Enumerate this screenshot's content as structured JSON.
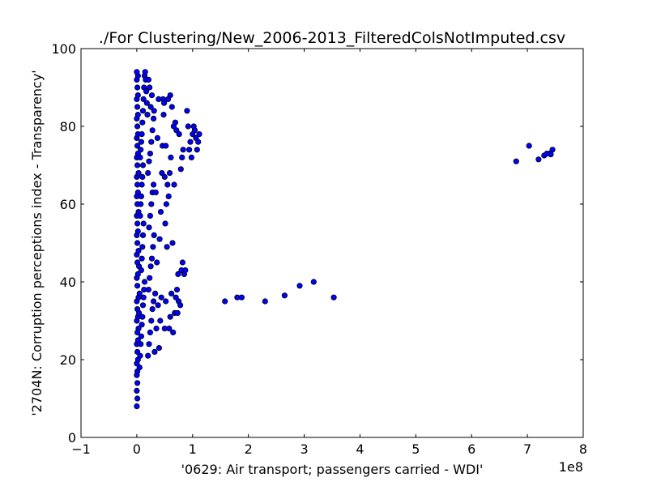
{
  "chart_data": {
    "type": "scatter",
    "title": "./For Clustering/New_2006-2013_FilteredColsNotImputed.csv",
    "xlabel": "'0629: Air transport; passengers carried - WDI'",
    "ylabel": "'2704N: Corruption perceptions index - Transparency'",
    "x_offset_label": "1e8",
    "xlim": [
      -1,
      8
    ],
    "ylim": [
      0,
      100
    ],
    "x_scale_factor": 100000000,
    "xticks": [
      -1,
      0,
      1,
      2,
      3,
      4,
      5,
      6,
      7,
      8
    ],
    "xtick_labels": [
      "−1",
      "0",
      "1",
      "2",
      "3",
      "4",
      "5",
      "6",
      "7",
      "8"
    ],
    "yticks": [
      0,
      20,
      40,
      60,
      80,
      100
    ],
    "ytick_labels": [
      "0",
      "20",
      "40",
      "60",
      "80",
      "100"
    ],
    "grid": false,
    "marker_color": "#0000ff",
    "marker_edge": "#000000",
    "points_xy": [
      [
        0.0,
        8
      ],
      [
        0.01,
        10
      ],
      [
        0.0,
        12
      ],
      [
        0.01,
        14
      ],
      [
        0.0,
        16
      ],
      [
        0.01,
        17
      ],
      [
        0.0,
        19
      ],
      [
        0.02,
        20
      ],
      [
        0.01,
        22
      ],
      [
        0.0,
        24
      ],
      [
        0.02,
        25
      ],
      [
        0.01,
        27
      ],
      [
        0.03,
        28
      ],
      [
        0.0,
        30
      ],
      [
        0.02,
        31
      ],
      [
        0.04,
        32
      ],
      [
        0.01,
        33
      ],
      [
        0.0,
        35
      ],
      [
        0.03,
        36
      ],
      [
        0.05,
        37
      ],
      [
        0.01,
        39
      ],
      [
        0.0,
        41
      ],
      [
        0.02,
        42
      ],
      [
        0.04,
        44
      ],
      [
        0.01,
        45
      ],
      [
        0.0,
        47
      ],
      [
        0.03,
        48
      ],
      [
        0.01,
        50
      ],
      [
        0.0,
        52
      ],
      [
        0.02,
        53
      ],
      [
        0.01,
        55
      ],
      [
        0.0,
        57
      ],
      [
        0.03,
        58
      ],
      [
        0.01,
        60
      ],
      [
        0.0,
        62
      ],
      [
        0.02,
        63
      ],
      [
        0.01,
        65
      ],
      [
        0.0,
        67
      ],
      [
        0.03,
        68
      ],
      [
        0.01,
        70
      ],
      [
        0.0,
        72
      ],
      [
        0.02,
        73
      ],
      [
        0.01,
        75
      ],
      [
        0.0,
        77
      ],
      [
        0.02,
        78
      ],
      [
        0.01,
        80
      ],
      [
        0.0,
        82
      ],
      [
        0.02,
        83
      ],
      [
        0.01,
        85
      ],
      [
        0.0,
        87
      ],
      [
        0.02,
        88
      ],
      [
        0.01,
        90
      ],
      [
        0.0,
        92
      ],
      [
        0.02,
        93
      ],
      [
        0.0,
        94
      ],
      [
        0.05,
        18
      ],
      [
        0.06,
        21
      ],
      [
        0.07,
        24
      ],
      [
        0.08,
        26
      ],
      [
        0.09,
        29
      ],
      [
        0.1,
        31
      ],
      [
        0.11,
        34
      ],
      [
        0.12,
        36
      ],
      [
        0.13,
        38
      ],
      [
        0.14,
        40
      ],
      [
        0.08,
        43
      ],
      [
        0.09,
        46
      ],
      [
        0.1,
        49
      ],
      [
        0.11,
        52
      ],
      [
        0.12,
        55
      ],
      [
        0.06,
        57
      ],
      [
        0.07,
        60
      ],
      [
        0.08,
        62
      ],
      [
        0.09,
        65
      ],
      [
        0.1,
        67
      ],
      [
        0.11,
        70
      ],
      [
        0.06,
        72
      ],
      [
        0.07,
        74
      ],
      [
        0.08,
        76
      ],
      [
        0.09,
        78
      ],
      [
        0.1,
        81
      ],
      [
        0.11,
        84
      ],
      [
        0.12,
        87
      ],
      [
        0.13,
        90
      ],
      [
        0.14,
        93
      ],
      [
        0.15,
        94
      ],
      [
        0.16,
        92
      ],
      [
        0.17,
        89
      ],
      [
        0.18,
        86
      ],
      [
        0.19,
        83
      ],
      [
        0.2,
        21
      ],
      [
        0.22,
        24
      ],
      [
        0.24,
        27
      ],
      [
        0.26,
        30
      ],
      [
        0.28,
        33
      ],
      [
        0.3,
        35
      ],
      [
        0.21,
        38
      ],
      [
        0.23,
        41
      ],
      [
        0.25,
        44
      ],
      [
        0.27,
        46
      ],
      [
        0.29,
        49
      ],
      [
        0.31,
        52
      ],
      [
        0.22,
        54
      ],
      [
        0.24,
        57
      ],
      [
        0.26,
        60
      ],
      [
        0.28,
        63
      ],
      [
        0.3,
        65
      ],
      [
        0.2,
        68
      ],
      [
        0.22,
        71
      ],
      [
        0.24,
        73
      ],
      [
        0.26,
        76
      ],
      [
        0.28,
        79
      ],
      [
        0.3,
        82
      ],
      [
        0.25,
        85
      ],
      [
        0.27,
        88
      ],
      [
        0.23,
        90
      ],
      [
        0.21,
        92
      ],
      [
        0.32,
        22
      ],
      [
        0.35,
        28
      ],
      [
        0.38,
        34
      ],
      [
        0.33,
        37
      ],
      [
        0.36,
        45
      ],
      [
        0.34,
        63
      ],
      [
        0.37,
        77
      ],
      [
        0.31,
        84
      ],
      [
        0.39,
        87
      ],
      [
        0.4,
        23
      ],
      [
        0.42,
        30
      ],
      [
        0.44,
        36
      ],
      [
        0.41,
        51
      ],
      [
        0.43,
        58
      ],
      [
        0.45,
        68
      ],
      [
        0.46,
        75
      ],
      [
        0.48,
        83
      ],
      [
        0.47,
        87
      ],
      [
        0.5,
        28
      ],
      [
        0.52,
        35
      ],
      [
        0.54,
        49
      ],
      [
        0.51,
        55
      ],
      [
        0.53,
        60
      ],
      [
        0.55,
        65
      ],
      [
        0.5,
        67
      ],
      [
        0.52,
        75
      ],
      [
        0.49,
        86
      ],
      [
        0.56,
        87
      ],
      [
        0.58,
        28
      ],
      [
        0.6,
        31
      ],
      [
        0.62,
        37
      ],
      [
        0.64,
        50
      ],
      [
        0.57,
        62
      ],
      [
        0.59,
        68
      ],
      [
        0.61,
        72
      ],
      [
        0.63,
        85
      ],
      [
        0.6,
        88
      ],
      [
        0.65,
        27
      ],
      [
        0.68,
        32
      ],
      [
        0.7,
        36
      ],
      [
        0.72,
        38
      ],
      [
        0.66,
        80
      ],
      [
        0.69,
        81
      ],
      [
        0.71,
        79
      ],
      [
        0.67,
        65
      ],
      [
        0.73,
        32
      ],
      [
        0.74,
        42
      ],
      [
        0.75,
        35
      ],
      [
        0.76,
        78
      ],
      [
        0.78,
        34
      ],
      [
        0.8,
        43
      ],
      [
        0.82,
        45
      ],
      [
        0.79,
        69
      ],
      [
        0.81,
        72
      ],
      [
        0.83,
        74
      ],
      [
        0.85,
        42
      ],
      [
        0.87,
        43
      ],
      [
        0.9,
        84
      ],
      [
        0.92,
        80
      ],
      [
        0.94,
        74
      ],
      [
        0.96,
        76
      ],
      [
        0.98,
        72
      ],
      [
        1.0,
        78
      ],
      [
        1.02,
        80
      ],
      [
        1.04,
        79
      ],
      [
        1.06,
        77
      ],
      [
        1.08,
        74
      ],
      [
        1.1,
        76
      ],
      [
        1.12,
        78
      ],
      [
        1.58,
        35
      ],
      [
        1.8,
        36
      ],
      [
        1.88,
        36
      ],
      [
        2.3,
        35
      ],
      [
        2.65,
        36.5
      ],
      [
        2.92,
        39
      ],
      [
        3.17,
        40
      ],
      [
        3.53,
        36
      ],
      [
        6.8,
        71
      ],
      [
        7.03,
        75
      ],
      [
        7.2,
        71.5
      ],
      [
        7.3,
        72.5
      ],
      [
        7.4,
        73
      ],
      [
        7.45,
        74
      ],
      [
        7.42,
        72.8
      ],
      [
        7.35,
        73
      ]
    ]
  }
}
